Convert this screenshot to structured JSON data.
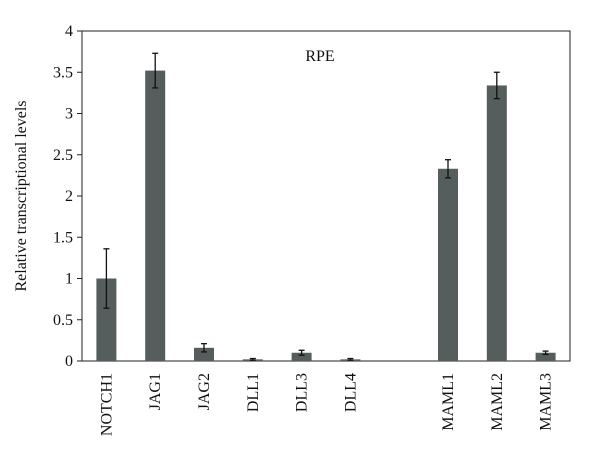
{
  "chart_data": {
    "type": "bar",
    "title": "RPE",
    "xlabel": "",
    "ylabel": "Relative transcriptional levels",
    "ylim": [
      0,
      4
    ],
    "yticks": [
      "0",
      "0.5",
      "1",
      "1.5",
      "2",
      "2.5",
      "3",
      "3.5",
      "4"
    ],
    "grid": false,
    "categories": [
      "NOTCH1",
      "JAG1",
      "JAG2",
      "DLL1",
      "DLL3",
      "DLL4",
      "",
      "MAML1",
      "MAML2",
      "MAML3"
    ],
    "values": [
      1.0,
      3.52,
      0.16,
      0.02,
      0.1,
      0.02,
      null,
      2.33,
      3.34,
      0.1
    ],
    "errors": [
      0.36,
      0.21,
      0.05,
      0.01,
      0.03,
      0.01,
      null,
      0.11,
      0.16,
      0.02
    ],
    "colors": {
      "bar": "#555e5d",
      "axis": "#222222",
      "error": "#111111"
    }
  }
}
